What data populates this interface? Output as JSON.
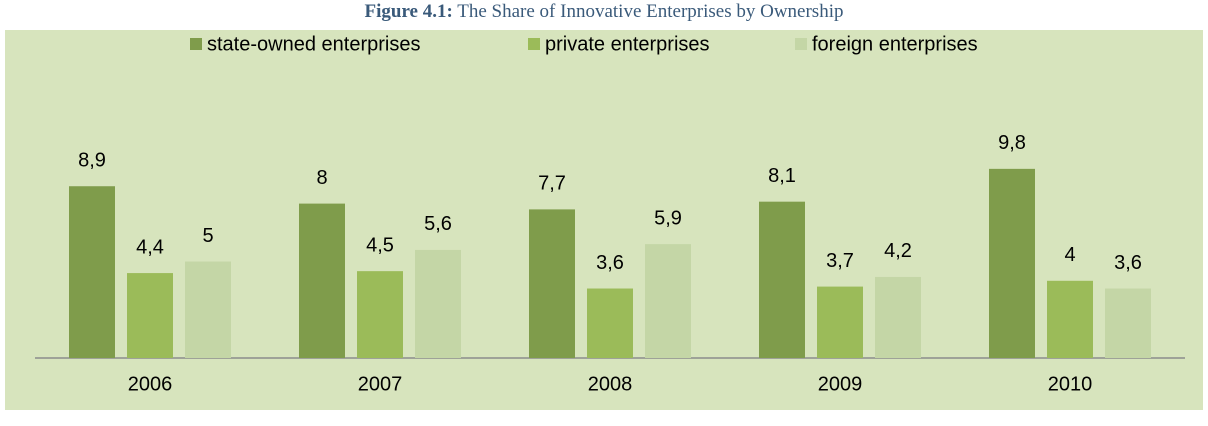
{
  "chart_data": {
    "type": "bar",
    "figure_label": "Figure 4.1:",
    "title": "The Share of Innovative Enterprises by Ownership",
    "categories": [
      "2006",
      "2007",
      "2008",
      "2009",
      "2010"
    ],
    "series": [
      {
        "name": "state-owned enterprises",
        "color": "#7f9c4b",
        "values": [
          8.9,
          8,
          7.7,
          8.1,
          9.8
        ],
        "value_labels": [
          "8,9",
          "8",
          "7,7",
          "8,1",
          "9,8"
        ]
      },
      {
        "name": "private enterprises",
        "color": "#9bbb59",
        "values": [
          4.4,
          4.5,
          3.6,
          3.7,
          4
        ],
        "value_labels": [
          "4,4",
          "4,5",
          "3,6",
          "3,7",
          "4"
        ]
      },
      {
        "name": "foreign enterprises",
        "color": "#c4d6a6",
        "values": [
          5,
          5.6,
          5.9,
          4.2,
          3.6
        ],
        "value_labels": [
          "5",
          "5,6",
          "5,9",
          "4,2",
          "3,6"
        ]
      }
    ],
    "ylim": [
      0,
      10
    ],
    "legend": "top"
  }
}
